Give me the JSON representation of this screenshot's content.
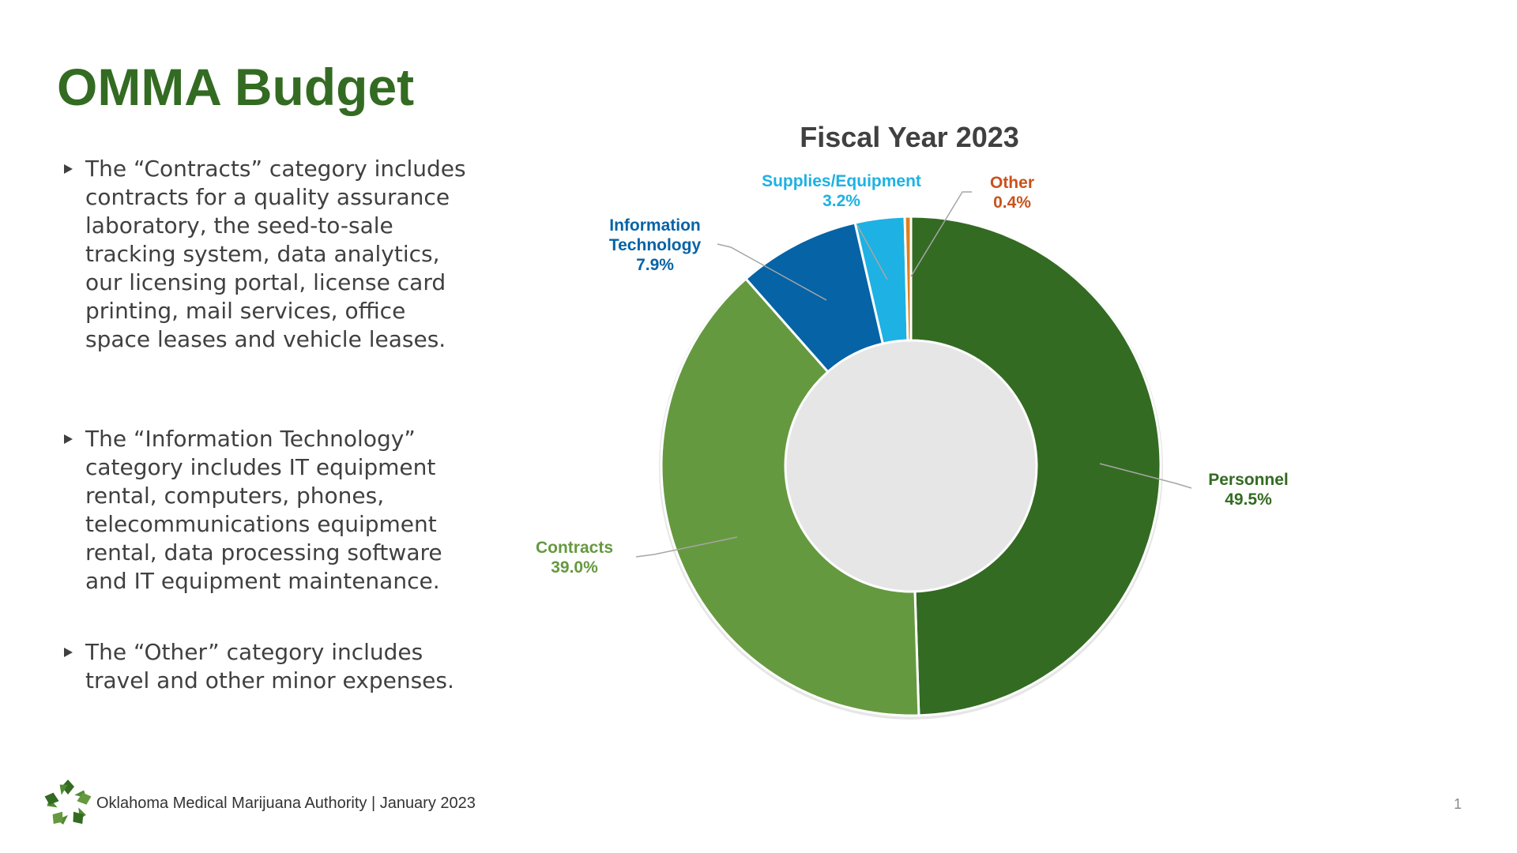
{
  "title": "OMMA Budget",
  "bullets": [
    "The “Contracts” category includes contracts for a quality assurance laboratory, the seed-to-sale tracking system, data analytics, our licensing portal, license card printing, mail services, office space leases and vehicle leases.",
    "The “Information Technology” category includes IT equipment rental, computers, phones, telecommunications equipment rental, data processing software and  IT equipment maintenance.",
    "The “Other” category includes travel and other minor expenses."
  ],
  "footer": {
    "text": "Oklahoma Medical Marijuana Authority | January 2023",
    "page": "1"
  },
  "chart_data": {
    "type": "pie",
    "subtype": "doughnut",
    "title": "Fiscal Year 2023",
    "categories": [
      "Personnel",
      "Contracts",
      "Information Technology",
      "Supplies/Equipment",
      "Other"
    ],
    "values": [
      49.5,
      39.0,
      7.9,
      3.2,
      0.4
    ],
    "value_labels": [
      "49.5%",
      "39.0%",
      "7.9%",
      "3.2%",
      "0.4%"
    ],
    "colors": [
      "#336b22",
      "#65993f",
      "#0563a6",
      "#1eb1e3",
      "#e07f1f"
    ],
    "label_colors": [
      "#336b22",
      "#65993f",
      "#0563a6",
      "#1eb1e3",
      "#c9521c"
    ],
    "unit": "%"
  }
}
